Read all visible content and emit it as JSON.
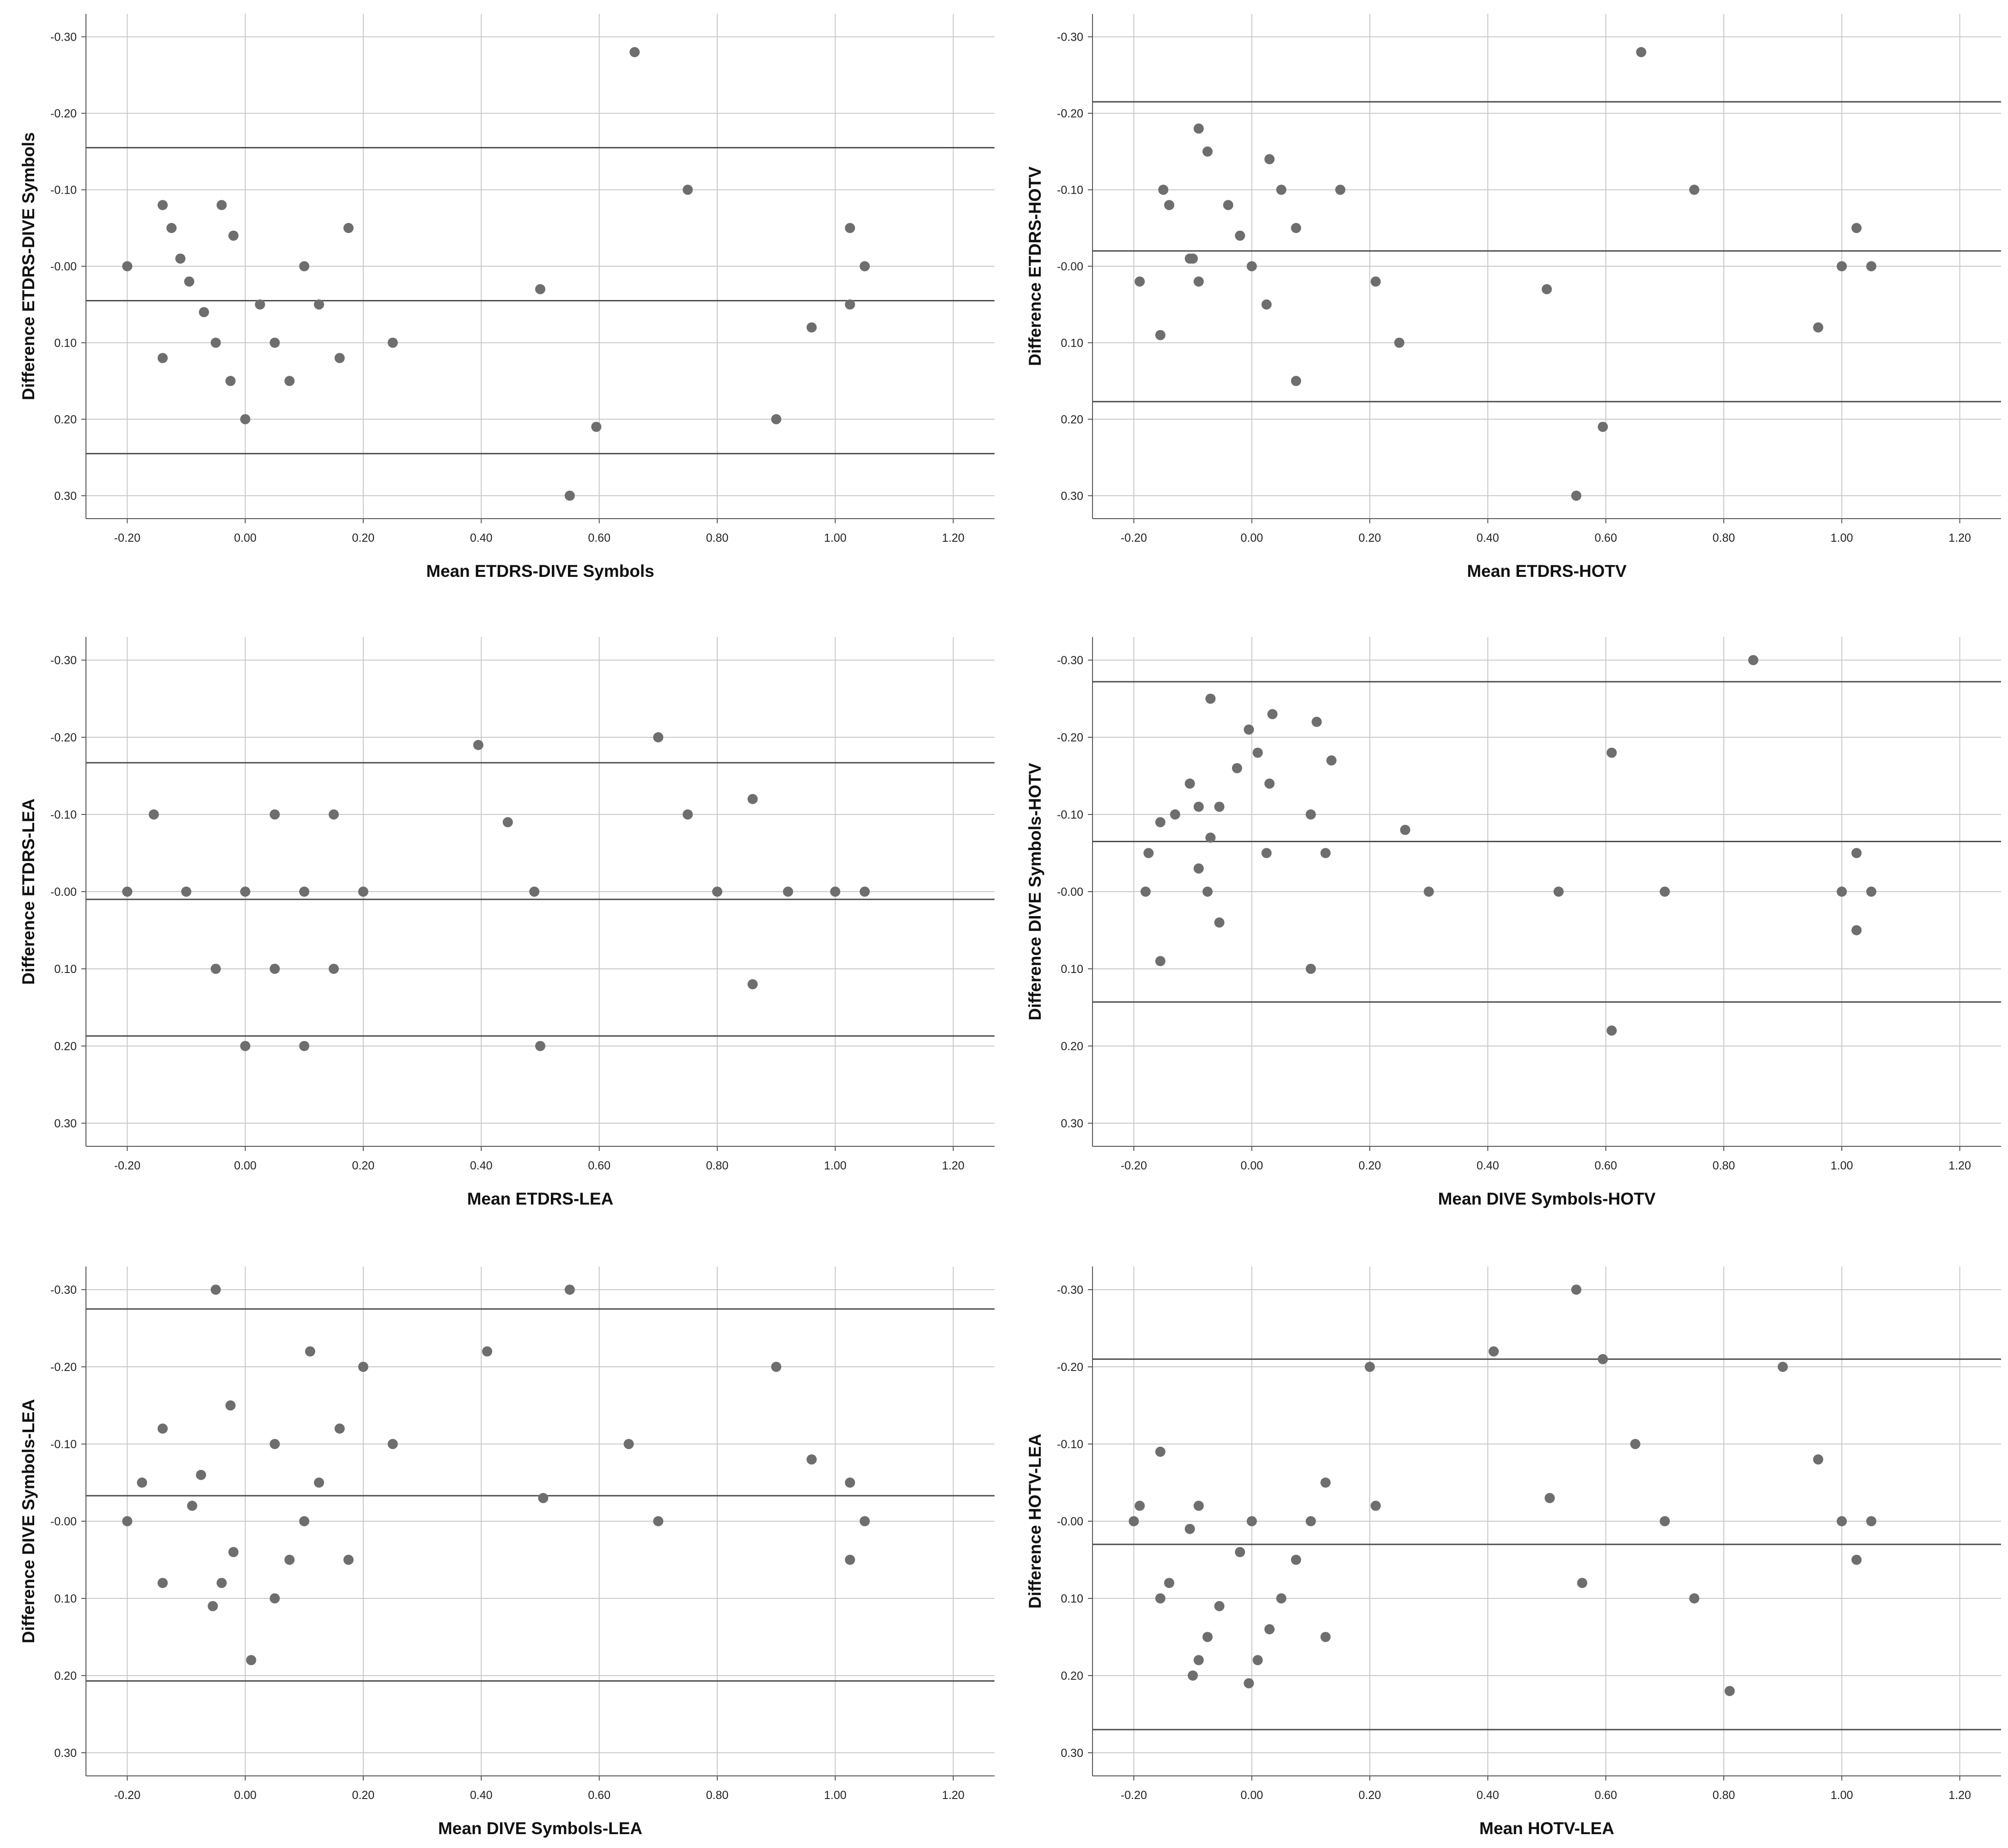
{
  "chart_data": [
    {
      "type": "scatter",
      "xlabel": "Mean ETDRS-DIVE Symbols",
      "ylabel": "Difference ETDRS-DIVE Symbols",
      "xlim": [
        -0.27,
        1.27
      ],
      "ylim": [
        -0.33,
        0.33
      ],
      "x_ticks": [
        "-0.20",
        "0.00",
        "0.20",
        "0.40",
        "0.60",
        "0.80",
        "1.00",
        "1.20"
      ],
      "y_ticks": [
        "-0.30",
        "-0.20",
        "-0.10",
        "-0.00",
        "0.10",
        "0.20",
        "0.30"
      ],
      "reference_lines": [
        -0.155,
        0.045,
        0.245
      ],
      "points": [
        {
          "x": -0.2,
          "y": 0.0
        },
        {
          "x": -0.14,
          "y": -0.08
        },
        {
          "x": -0.125,
          "y": -0.05
        },
        {
          "x": -0.11,
          "y": -0.01
        },
        {
          "x": -0.095,
          "y": 0.02
        },
        {
          "x": -0.14,
          "y": 0.12
        },
        {
          "x": -0.07,
          "y": 0.06
        },
        {
          "x": -0.05,
          "y": 0.1
        },
        {
          "x": -0.04,
          "y": -0.08
        },
        {
          "x": -0.025,
          "y": 0.15
        },
        {
          "x": -0.02,
          "y": -0.04
        },
        {
          "x": 0.0,
          "y": 0.2
        },
        {
          "x": 0.025,
          "y": 0.05
        },
        {
          "x": 0.05,
          "y": 0.1
        },
        {
          "x": 0.075,
          "y": 0.15
        },
        {
          "x": 0.1,
          "y": 0.0
        },
        {
          "x": 0.125,
          "y": 0.05
        },
        {
          "x": 0.16,
          "y": 0.12
        },
        {
          "x": 0.175,
          "y": -0.05
        },
        {
          "x": 0.25,
          "y": 0.1
        },
        {
          "x": 0.5,
          "y": 0.03
        },
        {
          "x": 0.55,
          "y": 0.3
        },
        {
          "x": 0.595,
          "y": 0.21
        },
        {
          "x": 0.66,
          "y": -0.28
        },
        {
          "x": 0.75,
          "y": -0.1
        },
        {
          "x": 0.9,
          "y": 0.2
        },
        {
          "x": 0.96,
          "y": 0.08
        },
        {
          "x": 1.025,
          "y": -0.05
        },
        {
          "x": 1.025,
          "y": 0.05
        },
        {
          "x": 1.05,
          "y": 0.0
        }
      ]
    },
    {
      "type": "scatter",
      "xlabel": "Mean ETDRS-HOTV",
      "ylabel": "Difference ETDRS-HOTV",
      "xlim": [
        -0.27,
        1.27
      ],
      "ylim": [
        -0.33,
        0.33
      ],
      "x_ticks": [
        "-0.20",
        "0.00",
        "0.20",
        "0.40",
        "0.60",
        "0.80",
        "1.00",
        "1.20"
      ],
      "y_ticks": [
        "-0.30",
        "-0.20",
        "-0.10",
        "-0.00",
        "0.10",
        "0.20",
        "0.30"
      ],
      "reference_lines": [
        -0.215,
        -0.02,
        0.177
      ],
      "points": [
        {
          "x": -0.19,
          "y": 0.02
        },
        {
          "x": -0.155,
          "y": 0.09
        },
        {
          "x": -0.15,
          "y": -0.1
        },
        {
          "x": -0.14,
          "y": -0.08
        },
        {
          "x": -0.105,
          "y": -0.01
        },
        {
          "x": -0.1,
          "y": -0.01
        },
        {
          "x": -0.09,
          "y": 0.02
        },
        {
          "x": -0.09,
          "y": -0.18
        },
        {
          "x": -0.075,
          "y": -0.15
        },
        {
          "x": -0.04,
          "y": -0.08
        },
        {
          "x": -0.02,
          "y": -0.04
        },
        {
          "x": 0.0,
          "y": 0.0
        },
        {
          "x": 0.025,
          "y": 0.05
        },
        {
          "x": 0.03,
          "y": -0.14
        },
        {
          "x": 0.05,
          "y": -0.1
        },
        {
          "x": 0.075,
          "y": -0.05
        },
        {
          "x": 0.075,
          "y": 0.15
        },
        {
          "x": 0.15,
          "y": -0.1
        },
        {
          "x": 0.21,
          "y": 0.02
        },
        {
          "x": 0.25,
          "y": 0.1
        },
        {
          "x": 0.5,
          "y": 0.03
        },
        {
          "x": 0.55,
          "y": 0.3
        },
        {
          "x": 0.595,
          "y": 0.21
        },
        {
          "x": 0.66,
          "y": -0.28
        },
        {
          "x": 0.75,
          "y": -0.1
        },
        {
          "x": 0.96,
          "y": 0.08
        },
        {
          "x": 1.0,
          "y": 0.0
        },
        {
          "x": 1.025,
          "y": -0.05
        },
        {
          "x": 1.05,
          "y": 0.0
        }
      ]
    },
    {
      "type": "scatter",
      "xlabel": "Mean ETDRS-LEA",
      "ylabel": "Difference ETDRS-LEA",
      "xlim": [
        -0.27,
        1.27
      ],
      "ylim": [
        -0.33,
        0.33
      ],
      "x_ticks": [
        "-0.20",
        "0.00",
        "0.20",
        "0.40",
        "0.60",
        "0.80",
        "1.00",
        "1.20"
      ],
      "y_ticks": [
        "-0.30",
        "-0.20",
        "-0.10",
        "-0.00",
        "0.10",
        "0.20",
        "0.30"
      ],
      "reference_lines": [
        -0.167,
        0.01,
        0.187
      ],
      "points": [
        {
          "x": -0.2,
          "y": 0.0
        },
        {
          "x": -0.155,
          "y": -0.1
        },
        {
          "x": -0.1,
          "y": 0.0
        },
        {
          "x": -0.05,
          "y": 0.1
        },
        {
          "x": 0.0,
          "y": 0.0
        },
        {
          "x": 0.0,
          "y": 0.2
        },
        {
          "x": 0.05,
          "y": -0.1
        },
        {
          "x": 0.05,
          "y": 0.1
        },
        {
          "x": 0.1,
          "y": 0.0
        },
        {
          "x": 0.1,
          "y": 0.2
        },
        {
          "x": 0.15,
          "y": -0.1
        },
        {
          "x": 0.15,
          "y": 0.1
        },
        {
          "x": 0.2,
          "y": 0.0
        },
        {
          "x": 0.395,
          "y": -0.19
        },
        {
          "x": 0.445,
          "y": -0.09
        },
        {
          "x": 0.49,
          "y": 0.0
        },
        {
          "x": 0.5,
          "y": 0.2
        },
        {
          "x": 0.7,
          "y": -0.2
        },
        {
          "x": 0.75,
          "y": -0.1
        },
        {
          "x": 0.8,
          "y": 0.0
        },
        {
          "x": 0.86,
          "y": -0.12
        },
        {
          "x": 0.86,
          "y": 0.12
        },
        {
          "x": 0.92,
          "y": 0.0
        },
        {
          "x": 1.0,
          "y": 0.0
        },
        {
          "x": 1.05,
          "y": 0.0
        }
      ]
    },
    {
      "type": "scatter",
      "xlabel": "Mean DIVE Symbols-HOTV",
      "ylabel": "Difference DIVE Symbols-HOTV",
      "xlim": [
        -0.27,
        1.27
      ],
      "ylim": [
        -0.33,
        0.33
      ],
      "x_ticks": [
        "-0.20",
        "0.00",
        "0.20",
        "0.40",
        "0.60",
        "0.80",
        "1.00",
        "1.20"
      ],
      "y_ticks": [
        "-0.30",
        "-0.20",
        "-0.10",
        "-0.00",
        "0.10",
        "0.20",
        "0.30"
      ],
      "reference_lines": [
        -0.272,
        -0.065,
        0.143
      ],
      "points": [
        {
          "x": -0.18,
          "y": 0.0
        },
        {
          "x": -0.175,
          "y": -0.05
        },
        {
          "x": -0.155,
          "y": -0.09
        },
        {
          "x": -0.155,
          "y": 0.09
        },
        {
          "x": -0.13,
          "y": -0.1
        },
        {
          "x": -0.105,
          "y": -0.14
        },
        {
          "x": -0.09,
          "y": -0.11
        },
        {
          "x": -0.09,
          "y": -0.03
        },
        {
          "x": -0.075,
          "y": 0.0
        },
        {
          "x": -0.07,
          "y": -0.25
        },
        {
          "x": -0.07,
          "y": -0.07
        },
        {
          "x": -0.055,
          "y": -0.11
        },
        {
          "x": -0.055,
          "y": 0.04
        },
        {
          "x": -0.025,
          "y": -0.16
        },
        {
          "x": -0.005,
          "y": -0.21
        },
        {
          "x": 0.01,
          "y": -0.18
        },
        {
          "x": 0.025,
          "y": -0.05
        },
        {
          "x": 0.03,
          "y": -0.14
        },
        {
          "x": 0.035,
          "y": -0.23
        },
        {
          "x": 0.1,
          "y": -0.1
        },
        {
          "x": 0.1,
          "y": 0.1
        },
        {
          "x": 0.11,
          "y": -0.22
        },
        {
          "x": 0.125,
          "y": -0.05
        },
        {
          "x": 0.135,
          "y": -0.17
        },
        {
          "x": 0.26,
          "y": -0.08
        },
        {
          "x": 0.3,
          "y": 0.0
        },
        {
          "x": 0.52,
          "y": 0.0
        },
        {
          "x": 0.61,
          "y": -0.18
        },
        {
          "x": 0.61,
          "y": 0.18
        },
        {
          "x": 0.7,
          "y": 0.0
        },
        {
          "x": 0.85,
          "y": -0.3
        },
        {
          "x": 1.0,
          "y": 0.0
        },
        {
          "x": 1.025,
          "y": -0.05
        },
        {
          "x": 1.025,
          "y": 0.05
        },
        {
          "x": 1.05,
          "y": 0.0
        }
      ]
    },
    {
      "type": "scatter",
      "xlabel": "Mean DIVE Symbols-LEA",
      "ylabel": "Difference DIVE Symbols-LEA",
      "xlim": [
        -0.27,
        1.27
      ],
      "ylim": [
        -0.33,
        0.33
      ],
      "x_ticks": [
        "-0.20",
        "0.00",
        "0.20",
        "0.40",
        "0.60",
        "0.80",
        "1.00",
        "1.20"
      ],
      "y_ticks": [
        "-0.30",
        "-0.20",
        "-0.10",
        "-0.00",
        "0.10",
        "0.20",
        "0.30"
      ],
      "reference_lines": [
        -0.275,
        -0.033,
        0.207
      ],
      "points": [
        {
          "x": -0.2,
          "y": 0.0
        },
        {
          "x": -0.175,
          "y": -0.05
        },
        {
          "x": -0.14,
          "y": -0.12
        },
        {
          "x": -0.14,
          "y": 0.08
        },
        {
          "x": -0.09,
          "y": -0.02
        },
        {
          "x": -0.075,
          "y": -0.06
        },
        {
          "x": -0.055,
          "y": 0.11
        },
        {
          "x": -0.05,
          "y": -0.3
        },
        {
          "x": -0.04,
          "y": 0.08
        },
        {
          "x": -0.025,
          "y": -0.15
        },
        {
          "x": -0.02,
          "y": 0.04
        },
        {
          "x": 0.01,
          "y": 0.18
        },
        {
          "x": 0.05,
          "y": -0.1
        },
        {
          "x": 0.05,
          "y": 0.1
        },
        {
          "x": 0.075,
          "y": 0.05
        },
        {
          "x": 0.1,
          "y": 0.0
        },
        {
          "x": 0.11,
          "y": -0.22
        },
        {
          "x": 0.125,
          "y": -0.05
        },
        {
          "x": 0.16,
          "y": -0.12
        },
        {
          "x": 0.175,
          "y": 0.05
        },
        {
          "x": 0.2,
          "y": -0.2
        },
        {
          "x": 0.25,
          "y": -0.1
        },
        {
          "x": 0.41,
          "y": -0.22
        },
        {
          "x": 0.505,
          "y": -0.03
        },
        {
          "x": 0.55,
          "y": -0.3
        },
        {
          "x": 0.65,
          "y": -0.1
        },
        {
          "x": 0.7,
          "y": 0.0
        },
        {
          "x": 0.9,
          "y": -0.2
        },
        {
          "x": 0.96,
          "y": -0.08
        },
        {
          "x": 1.025,
          "y": -0.05
        },
        {
          "x": 1.025,
          "y": 0.05
        },
        {
          "x": 1.05,
          "y": 0.0
        }
      ]
    },
    {
      "type": "scatter",
      "xlabel": "Mean HOTV-LEA",
      "ylabel": "Difference HOTV-LEA",
      "xlim": [
        -0.27,
        1.27
      ],
      "ylim": [
        -0.33,
        0.33
      ],
      "x_ticks": [
        "-0.20",
        "0.00",
        "0.20",
        "0.40",
        "0.60",
        "0.80",
        "1.00",
        "1.20"
      ],
      "y_ticks": [
        "-0.30",
        "-0.20",
        "-0.10",
        "-0.00",
        "0.10",
        "0.20",
        "0.30"
      ],
      "reference_lines": [
        -0.21,
        0.03,
        0.27
      ],
      "points": [
        {
          "x": -0.2,
          "y": 0.0
        },
        {
          "x": -0.19,
          "y": -0.02
        },
        {
          "x": -0.155,
          "y": -0.09
        },
        {
          "x": -0.155,
          "y": 0.1
        },
        {
          "x": -0.14,
          "y": 0.08
        },
        {
          "x": -0.105,
          "y": 0.01
        },
        {
          "x": -0.1,
          "y": 0.2
        },
        {
          "x": -0.09,
          "y": -0.02
        },
        {
          "x": -0.09,
          "y": 0.18
        },
        {
          "x": -0.075,
          "y": 0.15
        },
        {
          "x": -0.055,
          "y": 0.11
        },
        {
          "x": -0.02,
          "y": 0.04
        },
        {
          "x": -0.005,
          "y": 0.21
        },
        {
          "x": 0.0,
          "y": 0.0
        },
        {
          "x": 0.01,
          "y": 0.18
        },
        {
          "x": 0.03,
          "y": 0.14
        },
        {
          "x": 0.05,
          "y": 0.1
        },
        {
          "x": 0.075,
          "y": 0.05
        },
        {
          "x": 0.1,
          "y": 0.0
        },
        {
          "x": 0.125,
          "y": -0.05
        },
        {
          "x": 0.125,
          "y": 0.15
        },
        {
          "x": 0.2,
          "y": -0.2
        },
        {
          "x": 0.21,
          "y": -0.02
        },
        {
          "x": 0.41,
          "y": -0.22
        },
        {
          "x": 0.505,
          "y": -0.03
        },
        {
          "x": 0.55,
          "y": -0.3
        },
        {
          "x": 0.56,
          "y": 0.08
        },
        {
          "x": 0.595,
          "y": -0.21
        },
        {
          "x": 0.65,
          "y": -0.1
        },
        {
          "x": 0.7,
          "y": 0.0
        },
        {
          "x": 0.75,
          "y": 0.1
        },
        {
          "x": 0.81,
          "y": 0.22
        },
        {
          "x": 0.9,
          "y": -0.2
        },
        {
          "x": 0.96,
          "y": -0.08
        },
        {
          "x": 1.0,
          "y": 0.0
        },
        {
          "x": 1.025,
          "y": 0.05
        },
        {
          "x": 1.05,
          "y": 0.0
        }
      ]
    }
  ],
  "style": {
    "grid_color": "#c8c8c8",
    "axis_color": "#555555",
    "point_color": "#6e6e6e",
    "line_color": "#4d4d4d"
  }
}
